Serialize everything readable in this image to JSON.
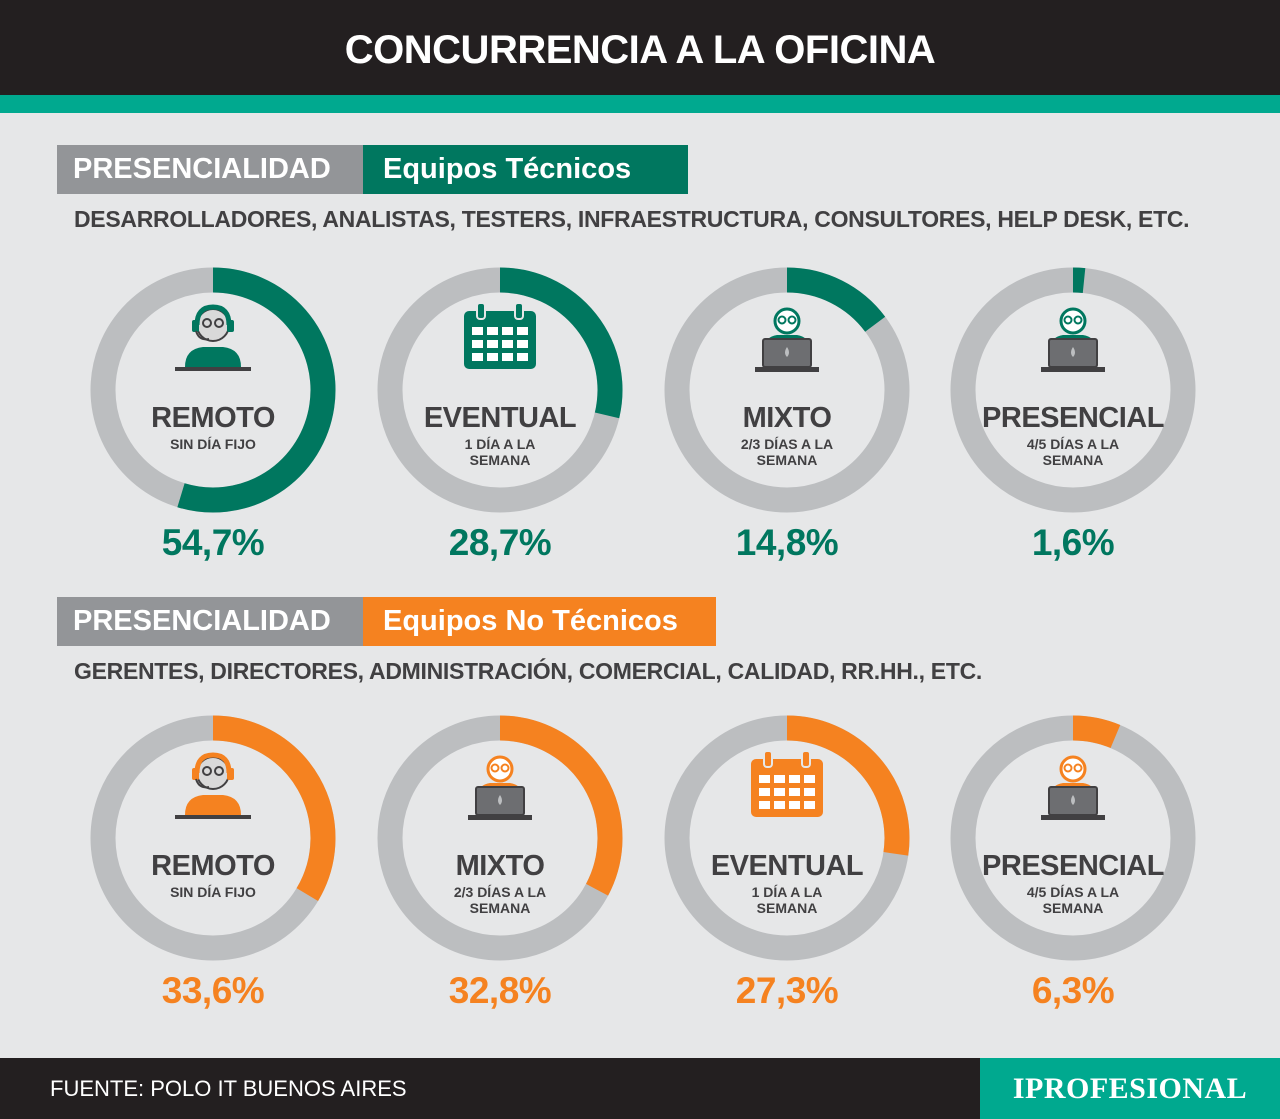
{
  "title": "CONCURRENCIA A LA OFICINA",
  "colors": {
    "tech": "#00775f",
    "nontech": "#f58220",
    "track": "#bcbec0",
    "accent": "#00a98f"
  },
  "chart_data": [
    {
      "type": "donut",
      "section_label": "PRESENCIALIDAD",
      "section_tag": "Equipos Técnicos",
      "subtitle": "DESARROLLADORES, ANALISTAS, TESTERS, INFRAESTRUCTURA, CONSULTORES, HELP DESK, ETC.",
      "unit": "%",
      "items": [
        {
          "label": "REMOTO",
          "sub": "SIN DÍA FIJO",
          "value": 54.7,
          "display": "54,7%",
          "icon": "headset-person-icon"
        },
        {
          "label": "EVENTUAL",
          "sub": "1 DÍA  A LA SEMANA",
          "value": 28.7,
          "display": "28,7%",
          "icon": "calendar-icon"
        },
        {
          "label": "MIXTO",
          "sub": "2/3 DÍAS A LA SEMANA",
          "value": 14.8,
          "display": "14,8%",
          "icon": "laptop-person-icon"
        },
        {
          "label": "PRESENCIAL",
          "sub": "4/5 DÍAS A LA SEMANA",
          "value": 1.6,
          "display": "1,6%",
          "icon": "laptop-person-icon"
        }
      ]
    },
    {
      "type": "donut",
      "section_label": "PRESENCIALIDAD",
      "section_tag": "Equipos No Técnicos",
      "subtitle": "GERENTES, DIRECTORES, ADMINISTRACIÓN, COMERCIAL, CALIDAD, RR.HH., ETC.",
      "unit": "%",
      "items": [
        {
          "label": "REMOTO",
          "sub": "SIN DÍA FIJO",
          "value": 33.6,
          "display": "33,6%",
          "icon": "headset-person-icon"
        },
        {
          "label": "MIXTO",
          "sub": "2/3 DÍAS A LA SEMANA",
          "value": 32.8,
          "display": "32,8%",
          "icon": "laptop-person-icon"
        },
        {
          "label": "EVENTUAL",
          "sub": "1 DÍA  A LA SEMANA",
          "value": 27.3,
          "display": "27,3%",
          "icon": "calendar-icon"
        },
        {
          "label": "PRESENCIAL",
          "sub": "4/5 DÍAS A LA SEMANA",
          "value": 6.3,
          "display": "6,3%",
          "icon": "laptop-person-icon"
        }
      ]
    }
  ],
  "footer": {
    "source": "FUENTE: POLO IT BUENOS AIRES",
    "brand": "IPROFESIONAL"
  }
}
